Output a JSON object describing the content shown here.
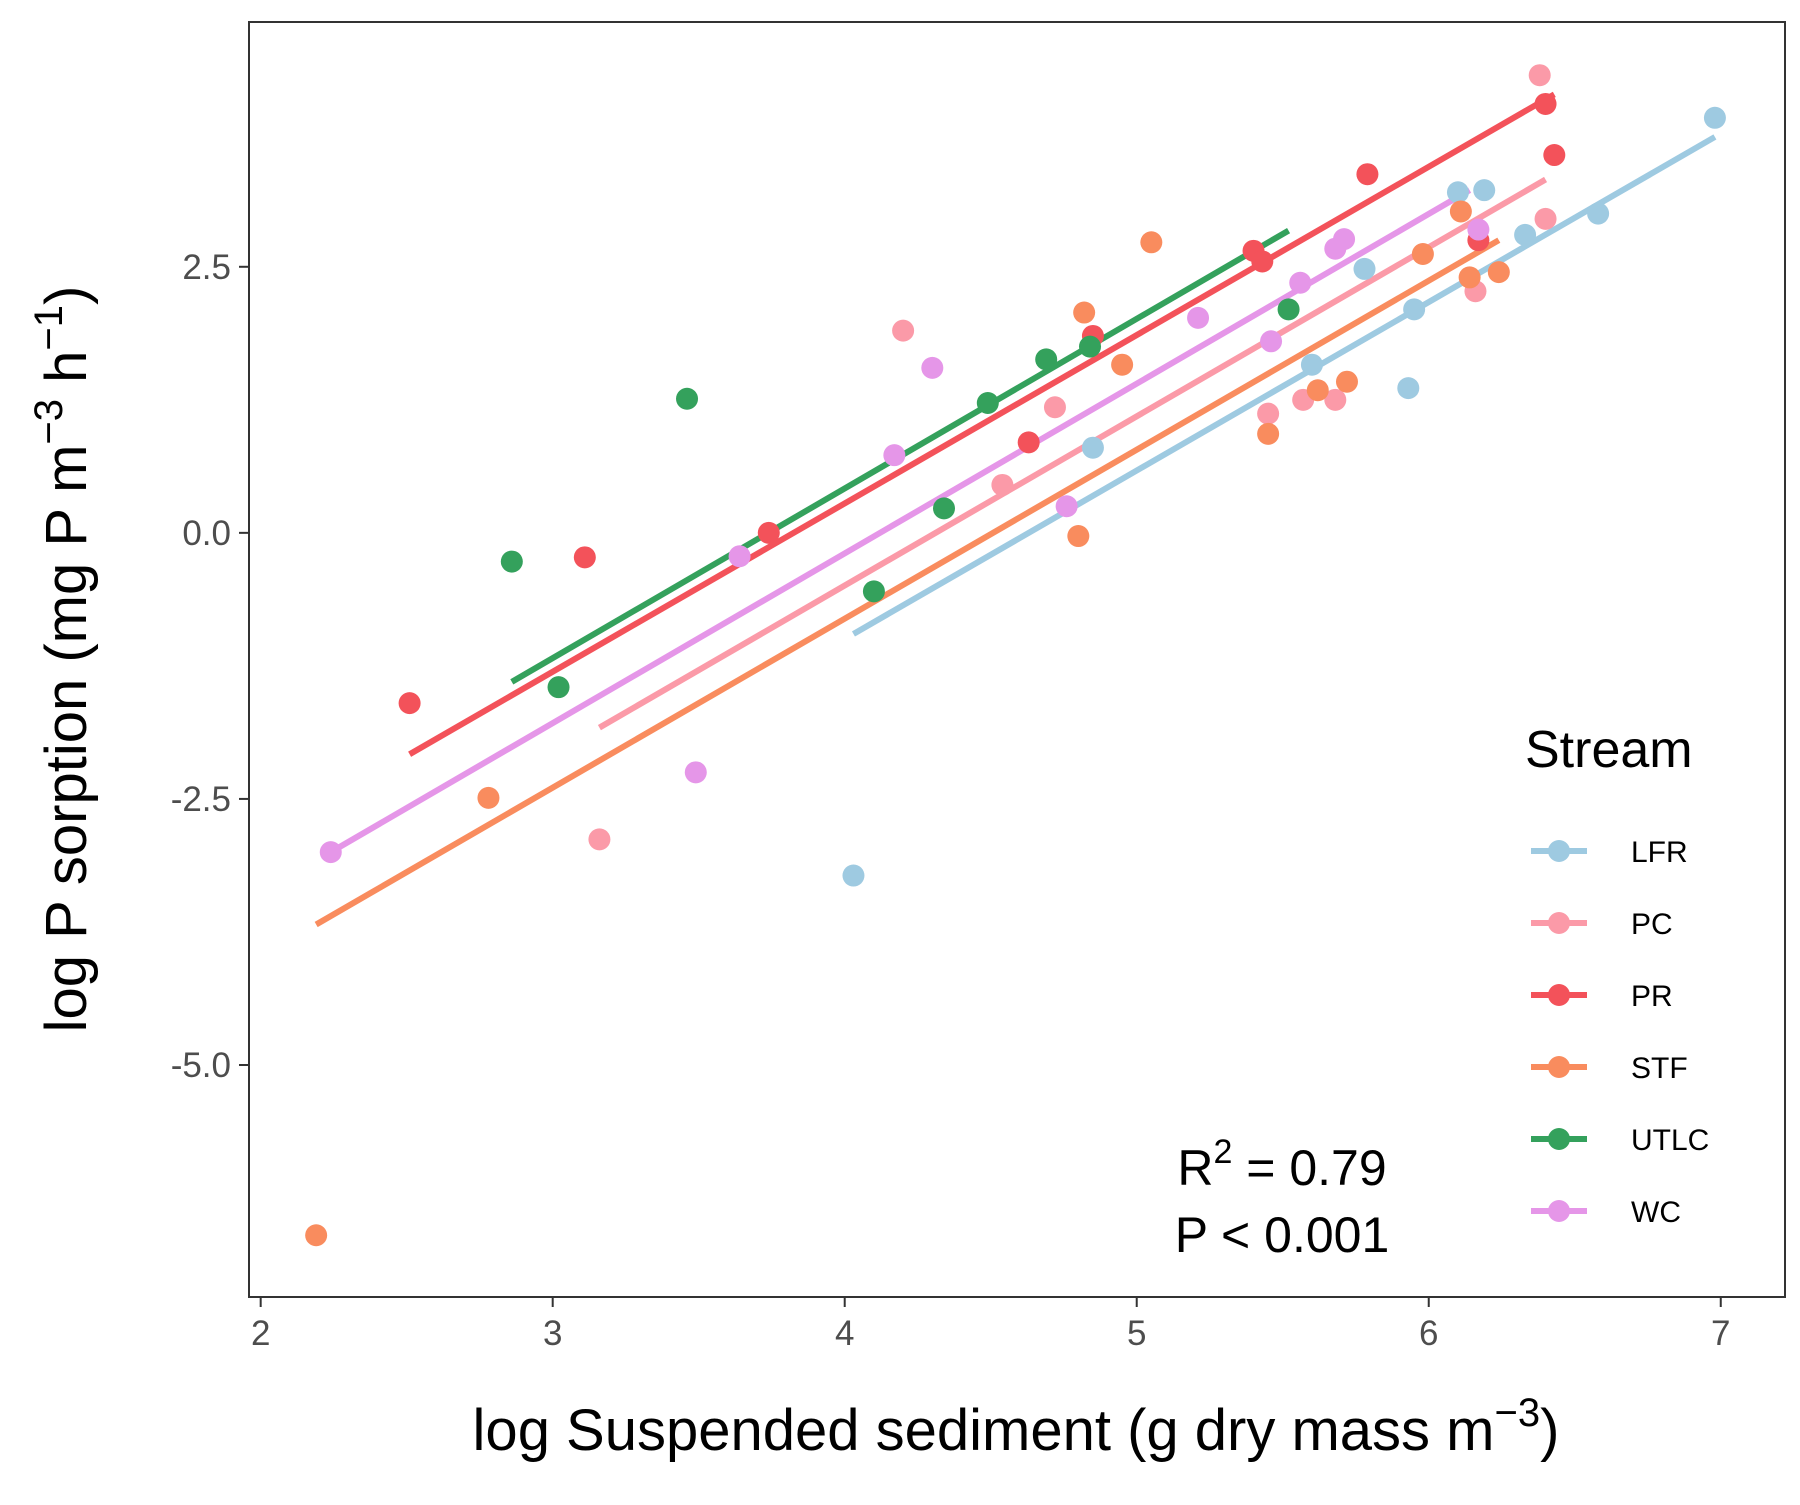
{
  "chart_data": {
    "type": "scatter",
    "x_label": {
      "pre": "log Suspended sediment (g dry mass m",
      "sup": "−3",
      "post": ")"
    },
    "y_label": {
      "pre": "log P sorption (mg P m",
      "sup1": "−3",
      "mid": " h",
      "sup2": "−1",
      "post": ")"
    },
    "xlim": [
      1.96,
      7.22
    ],
    "ylim": [
      -7.18,
      4.8
    ],
    "x_ticks": [
      2,
      3,
      4,
      5,
      6,
      7
    ],
    "x_tick_labels": [
      "2",
      "3",
      "4",
      "5",
      "6",
      "7"
    ],
    "y_ticks": [
      -5.0,
      -2.5,
      0.0,
      2.5
    ],
    "y_tick_labels": [
      "-5.0",
      "-2.5",
      "0.0",
      "2.5"
    ],
    "grid": false,
    "legend": {
      "title": "Stream",
      "position": "right",
      "entries": [
        "LFR",
        "PC",
        "PR",
        "STF",
        "UTLC",
        "WC"
      ]
    },
    "annotations": {
      "r2_pre": "R",
      "r2_sup": "2",
      "r2_post": " = 0.79",
      "p_value": "P < 0.001"
    },
    "series": [
      {
        "name": "LFR",
        "color": "#9ecae1",
        "points": [
          [
            4.03,
            -3.22
          ],
          [
            4.85,
            0.8
          ],
          [
            5.6,
            1.58
          ],
          [
            5.78,
            2.48
          ],
          [
            5.93,
            1.36
          ],
          [
            5.95,
            2.1
          ],
          [
            6.1,
            3.2
          ],
          [
            6.19,
            3.22
          ],
          [
            6.33,
            2.8
          ],
          [
            6.58,
            3.0
          ],
          [
            6.98,
            3.9
          ]
        ],
        "fit": [
          [
            4.03,
            -0.95
          ],
          [
            6.98,
            3.72
          ]
        ]
      },
      {
        "name": "PC",
        "color": "#fb9aa8",
        "points": [
          [
            3.16,
            -2.88
          ],
          [
            4.2,
            1.9
          ],
          [
            4.54,
            0.45
          ],
          [
            4.72,
            1.18
          ],
          [
            5.45,
            1.12
          ],
          [
            5.57,
            1.25
          ],
          [
            5.68,
            1.25
          ],
          [
            6.16,
            2.27
          ],
          [
            6.38,
            4.3
          ],
          [
            6.4,
            2.95
          ]
        ],
        "fit": [
          [
            3.16,
            -1.83
          ],
          [
            6.4,
            3.32
          ]
        ]
      },
      {
        "name": "PR",
        "color": "#f3525a",
        "points": [
          [
            2.51,
            -1.6
          ],
          [
            3.11,
            -0.23
          ],
          [
            3.74,
            0.0
          ],
          [
            4.63,
            0.85
          ],
          [
            4.85,
            1.85
          ],
          [
            5.4,
            2.65
          ],
          [
            5.43,
            2.55
          ],
          [
            5.79,
            3.37
          ],
          [
            6.17,
            2.75
          ],
          [
            6.4,
            4.03
          ],
          [
            6.43,
            3.55
          ]
        ],
        "fit": [
          [
            2.51,
            -2.08
          ],
          [
            6.43,
            4.12
          ]
        ]
      },
      {
        "name": "STF",
        "color": "#f98c5e",
        "points": [
          [
            2.19,
            -6.6
          ],
          [
            2.78,
            -2.49
          ],
          [
            4.8,
            -0.03
          ],
          [
            4.82,
            2.07
          ],
          [
            4.95,
            1.58
          ],
          [
            5.05,
            2.73
          ],
          [
            5.45,
            0.93
          ],
          [
            5.62,
            1.34
          ],
          [
            5.72,
            1.42
          ],
          [
            5.98,
            2.62
          ],
          [
            6.11,
            3.02
          ],
          [
            6.14,
            2.4
          ],
          [
            6.24,
            2.45
          ]
        ],
        "fit": [
          [
            2.19,
            -3.68
          ],
          [
            6.24,
            2.75
          ]
        ]
      },
      {
        "name": "UTLC",
        "color": "#34a15c",
        "points": [
          [
            2.86,
            -0.27
          ],
          [
            3.02,
            -1.45
          ],
          [
            3.46,
            1.26
          ],
          [
            4.1,
            -0.55
          ],
          [
            4.34,
            0.23
          ],
          [
            4.49,
            1.22
          ],
          [
            4.69,
            1.63
          ],
          [
            4.84,
            1.75
          ],
          [
            5.52,
            2.1
          ]
        ],
        "fit": [
          [
            2.86,
            -1.4
          ],
          [
            5.52,
            2.84
          ]
        ]
      },
      {
        "name": "WC",
        "color": "#e596e8",
        "points": [
          [
            2.24,
            -3.0
          ],
          [
            3.49,
            -2.25
          ],
          [
            3.64,
            -0.22
          ],
          [
            4.17,
            0.73
          ],
          [
            4.3,
            1.55
          ],
          [
            4.76,
            0.25
          ],
          [
            5.21,
            2.02
          ],
          [
            5.46,
            1.8
          ],
          [
            5.56,
            2.35
          ],
          [
            5.68,
            2.67
          ],
          [
            5.71,
            2.76
          ],
          [
            6.17,
            2.85
          ]
        ],
        "fit": [
          [
            2.24,
            -3.0
          ],
          [
            6.14,
            3.22
          ]
        ]
      }
    ]
  }
}
